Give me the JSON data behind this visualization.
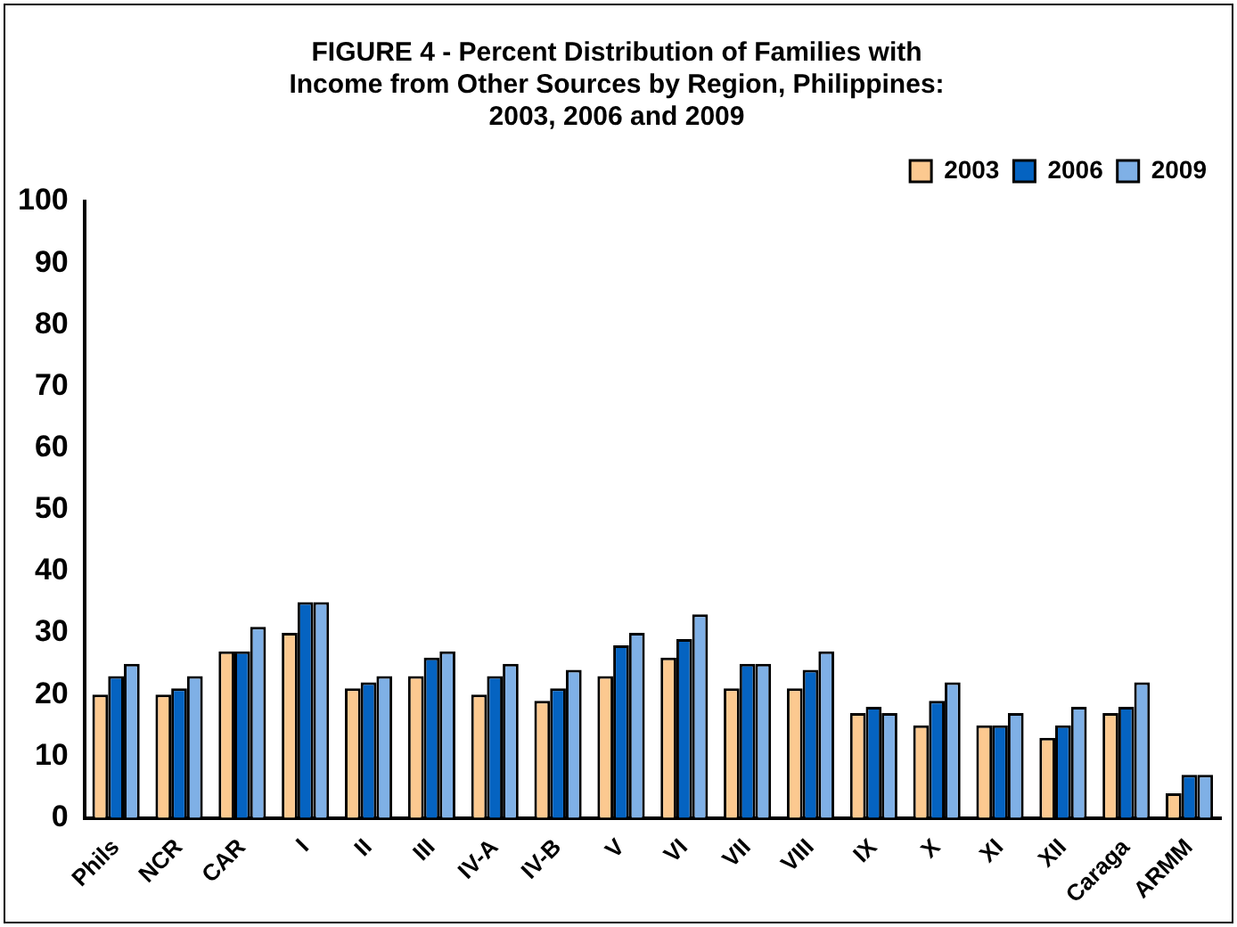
{
  "chart_data": {
    "type": "bar",
    "title": [
      "FIGURE 4 - Percent Distribution of Families with",
      "Income from Other Sources by Region, Philippines:",
      "2003, 2006 and 2009"
    ],
    "categories": [
      "Phils",
      "NCR",
      "CAR",
      "I",
      "II",
      "III",
      "IV-A",
      "IV-B",
      "V",
      "VI",
      "VII",
      "VIII",
      "IX",
      "X",
      "XI",
      "XII",
      "Caraga",
      "ARMM"
    ],
    "series": [
      {
        "name": "2003",
        "color": "#fcc990",
        "values": [
          20,
          20,
          27,
          30,
          21,
          23,
          20,
          19,
          23,
          26,
          21,
          21,
          17,
          15,
          15,
          13,
          17,
          4
        ]
      },
      {
        "name": "2006",
        "color": "#0563c1",
        "values": [
          23,
          21,
          27,
          35,
          22,
          26,
          23,
          21,
          28,
          29,
          25,
          24,
          18,
          19,
          15,
          15,
          18,
          7
        ]
      },
      {
        "name": "2009",
        "color": "#7fb0e6",
        "values": [
          25,
          23,
          31,
          35,
          23,
          27,
          25,
          24,
          30,
          33,
          25,
          27,
          17,
          22,
          17,
          18,
          22,
          7
        ]
      }
    ],
    "ylim": [
      0,
      100
    ],
    "yticks": [
      0,
      10,
      20,
      30,
      40,
      50,
      60,
      70,
      80,
      90,
      100
    ],
    "grid": false,
    "legend": "top right"
  }
}
